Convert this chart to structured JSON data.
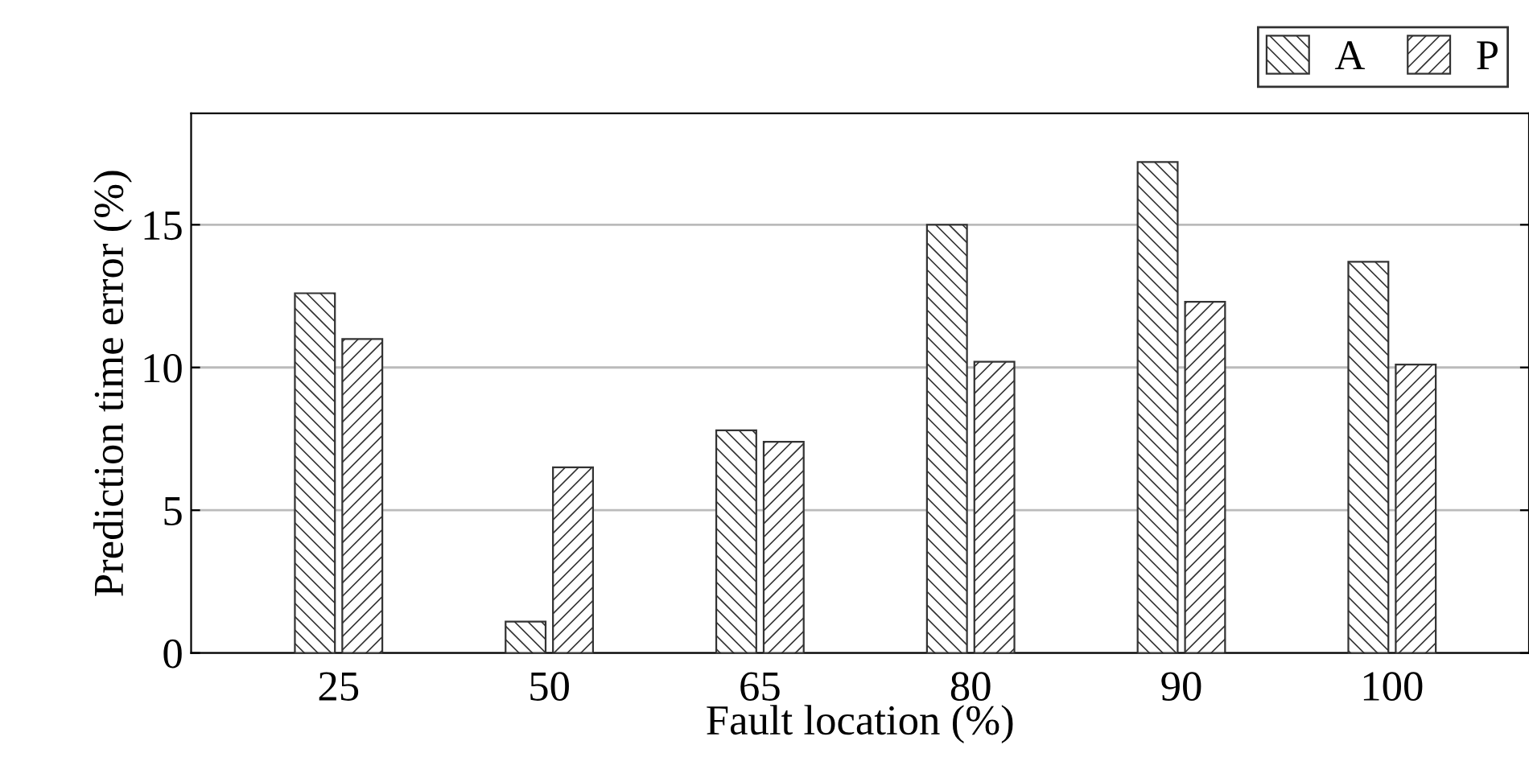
{
  "chart_data": {
    "type": "bar",
    "xlabel": "Fault location (%)",
    "ylabel": "Prediction time error (%)",
    "categories": [
      "25",
      "50",
      "65",
      "80",
      "90",
      "100"
    ],
    "series": [
      {
        "name": "A",
        "color": "#333333",
        "values": [
          12.6,
          1.1,
          7.8,
          15.0,
          17.2,
          13.7
        ]
      },
      {
        "name": "P",
        "color": "#333333",
        "values": [
          11.0,
          6.5,
          7.4,
          10.2,
          12.3,
          10.1
        ]
      }
    ],
    "ylim": [
      0,
      18.9
    ],
    "yticks": [
      0,
      5,
      10,
      15
    ],
    "grid": "y",
    "legend": "top right"
  }
}
